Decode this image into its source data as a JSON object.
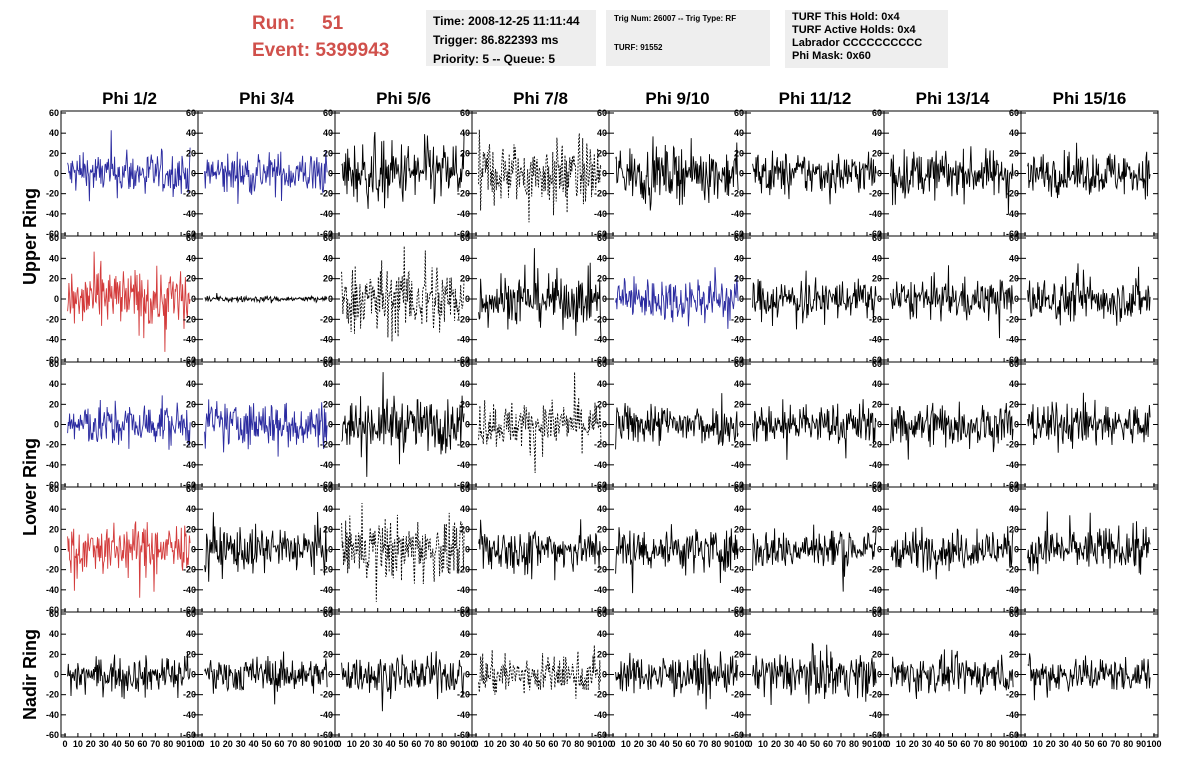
{
  "header": {
    "run_label": "Run:",
    "run_value": "51",
    "event_label": "Event:",
    "event_value": "5399943"
  },
  "info_box_1": {
    "time": "Time: 2008-12-25 11:11:44",
    "trigger": "Trigger: 86.822393 ms",
    "priority": "Priority: 5 -- Queue: 5"
  },
  "info_box_2": {
    "trig": "Trig Num: 26007 -- Trig Type: RF",
    "turf": "TURF: 91552"
  },
  "info_box_3": {
    "this_hold": "TURF This Hold: 0x4",
    "active_holds": "TURF Active Holds: 0x4",
    "labrador": "Labrador CCCCCCCCCC",
    "phi_mask": "Phi Mask: 0x60"
  },
  "colors": {
    "black": "#000000",
    "blue": "#2b2ba0",
    "red": "#d33b3b"
  },
  "chart_data": {
    "type": "line",
    "columns": [
      "Phi 1/2",
      "Phi 3/4",
      "Phi 5/6",
      "Phi 7/8",
      "Phi 9/10",
      "Phi 11/12",
      "Phi 13/14",
      "Phi 15/16"
    ],
    "rows": [
      "Upper Ring",
      "Upper Ring",
      "Lower Ring",
      "Lower Ring",
      "Nadir Ring"
    ],
    "row_labels": [
      "Upper Ring",
      "Lower Ring",
      "Nadir Ring"
    ],
    "xlim": [
      0,
      100
    ],
    "ylim": [
      -60,
      60
    ],
    "x_ticks": [
      0,
      10,
      20,
      30,
      40,
      50,
      60,
      70,
      80,
      90,
      100
    ],
    "y_ticks": [
      -60,
      -40,
      -20,
      0,
      20,
      40,
      60
    ],
    "panels": [
      [
        {
          "style": "blue",
          "amp": 15
        },
        {
          "style": "blue",
          "amp": 15
        },
        {
          "style": "black",
          "amp": 22
        },
        {
          "style": "dashed",
          "amp": 22
        },
        {
          "style": "black",
          "amp": 18
        },
        {
          "style": "black",
          "amp": 15
        },
        {
          "style": "black",
          "amp": 16
        },
        {
          "style": "black",
          "amp": 15
        }
      ],
      [
        {
          "style": "red",
          "amp": 22
        },
        {
          "style": "black",
          "amp": 2
        },
        {
          "style": "dashed",
          "amp": 24
        },
        {
          "style": "black",
          "amp": 18
        },
        {
          "style": "blue",
          "amp": 16
        },
        {
          "style": "black",
          "amp": 14
        },
        {
          "style": "black",
          "amp": 14
        },
        {
          "style": "black",
          "amp": 15
        }
      ],
      [
        {
          "style": "blue",
          "amp": 15
        },
        {
          "style": "blue",
          "amp": 16
        },
        {
          "style": "black",
          "amp": 18
        },
        {
          "style": "dashed",
          "amp": 16
        },
        {
          "style": "black",
          "amp": 14
        },
        {
          "style": "black",
          "amp": 14
        },
        {
          "style": "black",
          "amp": 16
        },
        {
          "style": "black",
          "amp": 15
        }
      ],
      [
        {
          "style": "red",
          "amp": 18
        },
        {
          "style": "black",
          "amp": 16
        },
        {
          "style": "dashed",
          "amp": 22
        },
        {
          "style": "black",
          "amp": 16
        },
        {
          "style": "black",
          "amp": 16
        },
        {
          "style": "black",
          "amp": 14
        },
        {
          "style": "black",
          "amp": 14
        },
        {
          "style": "black",
          "amp": 15
        }
      ],
      [
        {
          "style": "black",
          "amp": 12
        },
        {
          "style": "black",
          "amp": 12
        },
        {
          "style": "black",
          "amp": 13
        },
        {
          "style": "dashed",
          "amp": 14
        },
        {
          "style": "black",
          "amp": 13
        },
        {
          "style": "black",
          "amp": 15
        },
        {
          "style": "black",
          "amp": 13
        },
        {
          "style": "black",
          "amp": 12
        }
      ]
    ]
  }
}
